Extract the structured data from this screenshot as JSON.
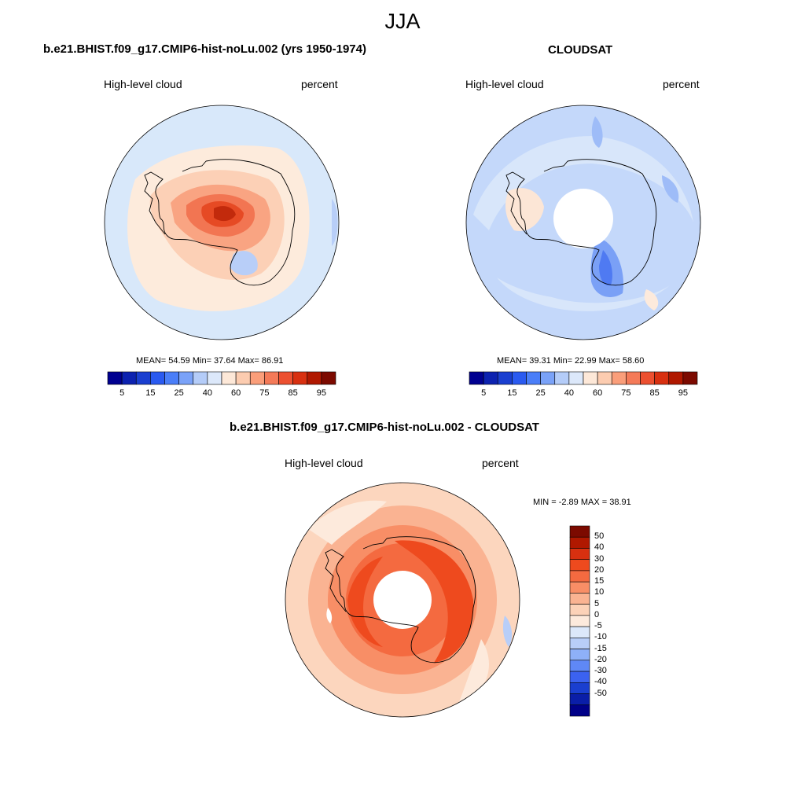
{
  "main_title": "JJA",
  "panels": [
    {
      "title": "b.e21.BHIST.f09_g17.CMIP6-hist-noLu.002 (yrs 1950-1974)",
      "left_label": "High-level cloud",
      "right_label": "percent",
      "stats": "MEAN=  54.59  Min=  37.64  Max=  86.91"
    },
    {
      "title": "CLOUDSAT",
      "left_label": "High-level cloud",
      "right_label": "percent",
      "stats": "MEAN=  39.31  Min=  22.99  Max=  58.60"
    },
    {
      "title": "b.e21.BHIST.f09_g17.CMIP6-hist-noLu.002 - CLOUDSAT",
      "left_label": "High-level cloud",
      "right_label": "percent",
      "stats": "MIN =  -2.89 MAX =  38.91"
    }
  ],
  "colorbar_horizontal": {
    "tick_labels": [
      "5",
      "15",
      "25",
      "40",
      "60",
      "75",
      "85",
      "95"
    ],
    "colors": [
      "#000090",
      "#0c22b0",
      "#1a3fd0",
      "#2a5af0",
      "#4a7ef8",
      "#7aa2f8",
      "#b4ccf8",
      "#dce8fa",
      "#fde8d8",
      "#fcccb0",
      "#fa9e7a",
      "#f47a58",
      "#ec5030",
      "#d83010",
      "#b01800",
      "#7c0a00"
    ]
  },
  "colorbar_vertical": {
    "tick_labels": [
      "50",
      "40",
      "30",
      "20",
      "15",
      "10",
      "5",
      "0",
      "-5",
      "-10",
      "-15",
      "-20",
      "-30",
      "-40",
      "-50"
    ],
    "colors": [
      "#7c0a00",
      "#b01800",
      "#d83010",
      "#ee4a1e",
      "#f46a40",
      "#f88e66",
      "#fab392",
      "#fcd2b8",
      "#fdeadc",
      "#dce8fa",
      "#b8cef8",
      "#8eb0f8",
      "#5f88f6",
      "#3b62f0",
      "#1a3fd0",
      "#0a1ea8",
      "#000088"
    ]
  }
}
